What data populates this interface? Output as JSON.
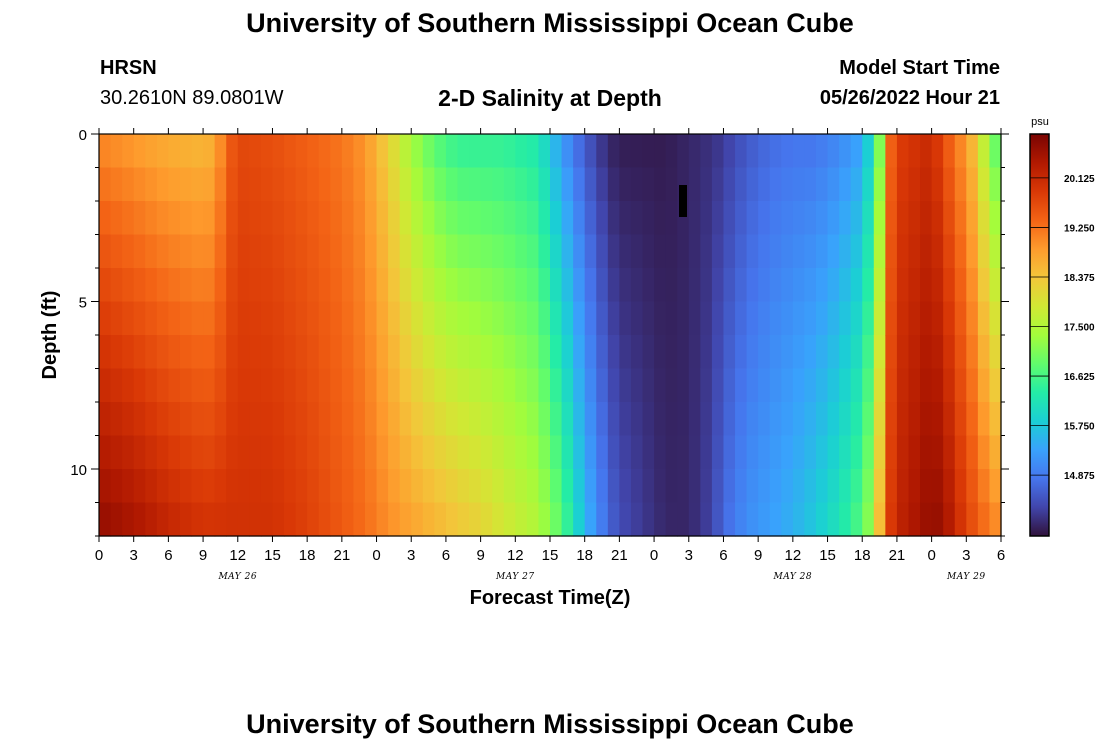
{
  "header": {
    "title": "University of Southern Mississippi Ocean Cube",
    "station_id": "HRSN",
    "coordinates": "30.2610N  89.0801W",
    "subtitle": "2-D Salinity at Depth",
    "model_start_label": "Model Start Time",
    "model_start_value": "05/26/2022 Hour 21"
  },
  "footer": {
    "title": "University of Southern Mississippi Ocean Cube"
  },
  "colors": {
    "ramp": [
      "#30123b",
      "#4145ab",
      "#4675ed",
      "#39a2fc",
      "#1bcfd4",
      "#24eca6",
      "#61fc6c",
      "#a4fc3b",
      "#d1e834",
      "#f3c63a",
      "#fe9b2d",
      "#f36315",
      "#d93806",
      "#b11901",
      "#7a0402"
    ],
    "missing_marker": "#000000"
  },
  "chart_data": {
    "type": "heatmap",
    "title": "2-D Salinity at Depth",
    "xlabel": "Forecast Time(Z)",
    "ylabel": "Depth (ft)",
    "x_unit": "hours since 05/26/2022 00Z",
    "xlim": [
      0,
      78
    ],
    "ylim": [
      12,
      0
    ],
    "x_tick_values": [
      0,
      3,
      6,
      9,
      12,
      15,
      18,
      21,
      24,
      27,
      30,
      33,
      36,
      39,
      42,
      45,
      48,
      51,
      54,
      57,
      60,
      63,
      66,
      69,
      72,
      75,
      78
    ],
    "x_tick_labels": [
      "0",
      "3",
      "6",
      "9",
      "12",
      "15",
      "18",
      "21",
      "0",
      "3",
      "6",
      "9",
      "12",
      "15",
      "18",
      "21",
      "0",
      "3",
      "6",
      "9",
      "12",
      "15",
      "18",
      "21",
      "0",
      "3",
      "6"
    ],
    "date_labels": [
      {
        "text": "MAY 26",
        "x": 12
      },
      {
        "text": "MAY 27",
        "x": 36
      },
      {
        "text": "MAY 28",
        "x": 60
      },
      {
        "text": "MAY 29",
        "x": 75
      }
    ],
    "y_ticks": [
      0,
      5,
      10
    ],
    "y_tick_labels": [
      "0",
      "5",
      "10"
    ],
    "colorbar": {
      "unit": "psu",
      "min": 13.8,
      "max": 20.9,
      "ticks": [
        20.125,
        19.25,
        18.375,
        17.5,
        16.625,
        15.75,
        14.875
      ],
      "tick_labels": [
        "20.125",
        "19.250",
        "18.375",
        "17.500",
        "16.625",
        "15.750",
        "14.875"
      ]
    },
    "depth_levels": 12,
    "time_steps": 78,
    "salinity_profile": {
      "time_hours": [
        0,
        3,
        6,
        9,
        10,
        11,
        12,
        15,
        18,
        21,
        23,
        25,
        27,
        29,
        31,
        33,
        35,
        38,
        40,
        42,
        44,
        45,
        47,
        49,
        51,
        53,
        54,
        56,
        58,
        60,
        62,
        64,
        66,
        67,
        67.5,
        68,
        69,
        72,
        73,
        74,
        75,
        76,
        77,
        78
      ],
      "surface_psu": [
        19.0,
        18.8,
        18.6,
        18.5,
        18.6,
        19.3,
        19.7,
        19.6,
        19.4,
        19.2,
        18.9,
        18.2,
        17.3,
        16.7,
        16.4,
        16.4,
        16.4,
        16.2,
        15.2,
        14.5,
        14.0,
        13.9,
        13.9,
        13.9,
        14.0,
        14.1,
        14.2,
        14.5,
        14.7,
        14.8,
        14.8,
        15.0,
        15.3,
        16.2,
        17.0,
        19.0,
        19.8,
        20.1,
        19.6,
        19.2,
        18.8,
        18.2,
        17.0,
        16.6
      ],
      "bottom_psu": [
        20.7,
        20.5,
        20.2,
        20.0,
        20.0,
        20.0,
        20.0,
        20.0,
        19.8,
        19.5,
        19.3,
        19.0,
        18.8,
        18.6,
        18.4,
        18.2,
        17.9,
        17.5,
        16.8,
        15.6,
        14.7,
        14.4,
        14.2,
        14.0,
        14.0,
        14.3,
        14.7,
        15.1,
        15.3,
        15.5,
        15.8,
        16.2,
        16.8,
        17.5,
        18.5,
        19.6,
        20.2,
        20.7,
        20.6,
        20.2,
        19.8,
        19.5,
        19.2,
        19.0
      ]
    }
  }
}
